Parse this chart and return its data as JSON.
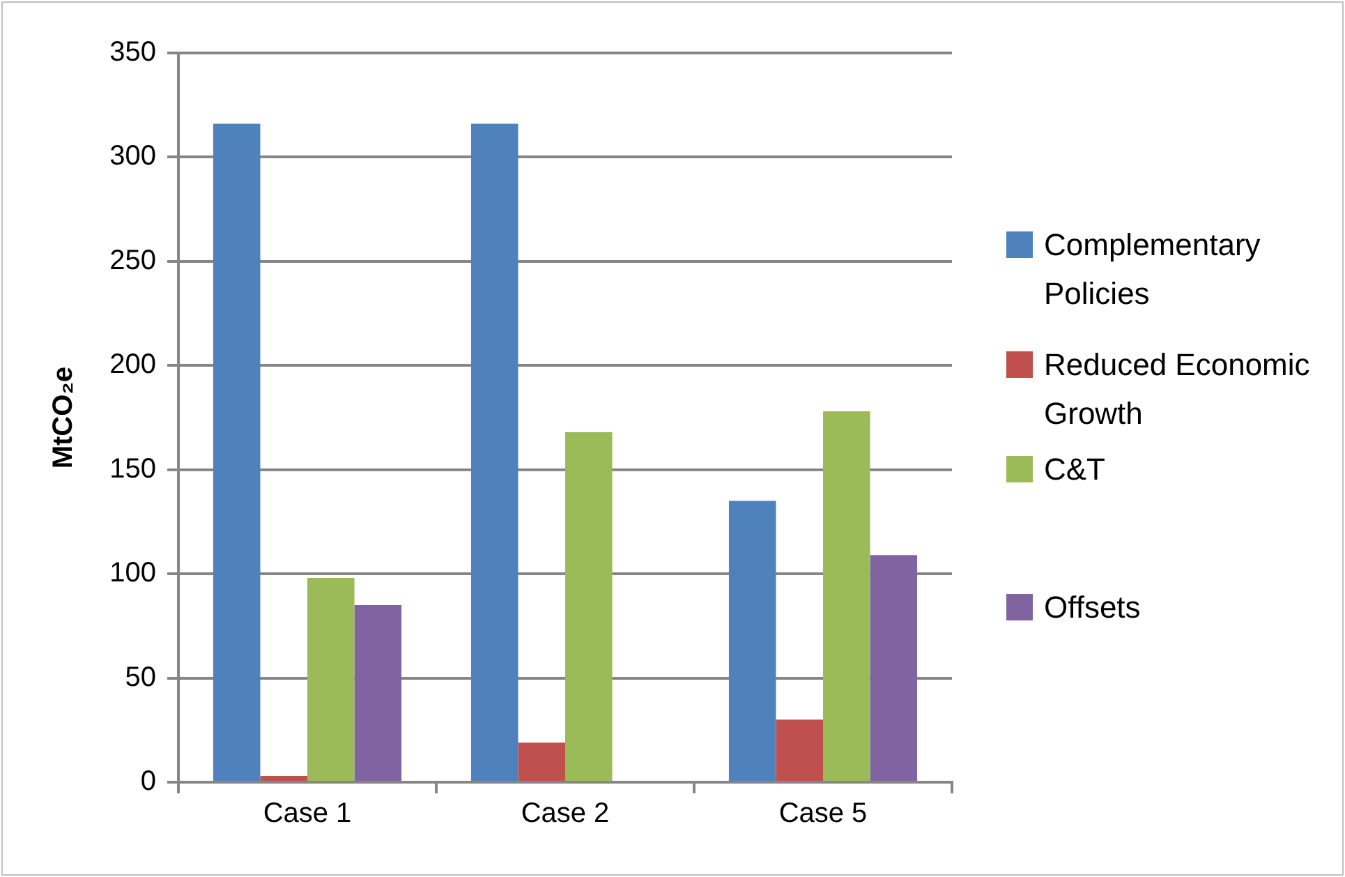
{
  "chart_data": {
    "type": "bar",
    "ylabel": "MtCO₂e",
    "categories": [
      "Case 1",
      "Case 2",
      "Case 5"
    ],
    "series": [
      {
        "name": "Complementary Policies",
        "color": "#4f81bd",
        "values": [
          316,
          316,
          135
        ]
      },
      {
        "name": "Reduced Economic Growth",
        "color": "#c0504d",
        "values": [
          3,
          19,
          30
        ]
      },
      {
        "name": "C&T",
        "color": "#9bbb59",
        "values": [
          98,
          168,
          178
        ]
      },
      {
        "name": "Offsets",
        "color": "#8064a2",
        "values": [
          85,
          null,
          109
        ]
      }
    ],
    "ylim": [
      0,
      350
    ],
    "yticks": [
      0,
      50,
      100,
      150,
      200,
      250,
      300,
      350
    ],
    "grid": "y",
    "legend": "right"
  }
}
